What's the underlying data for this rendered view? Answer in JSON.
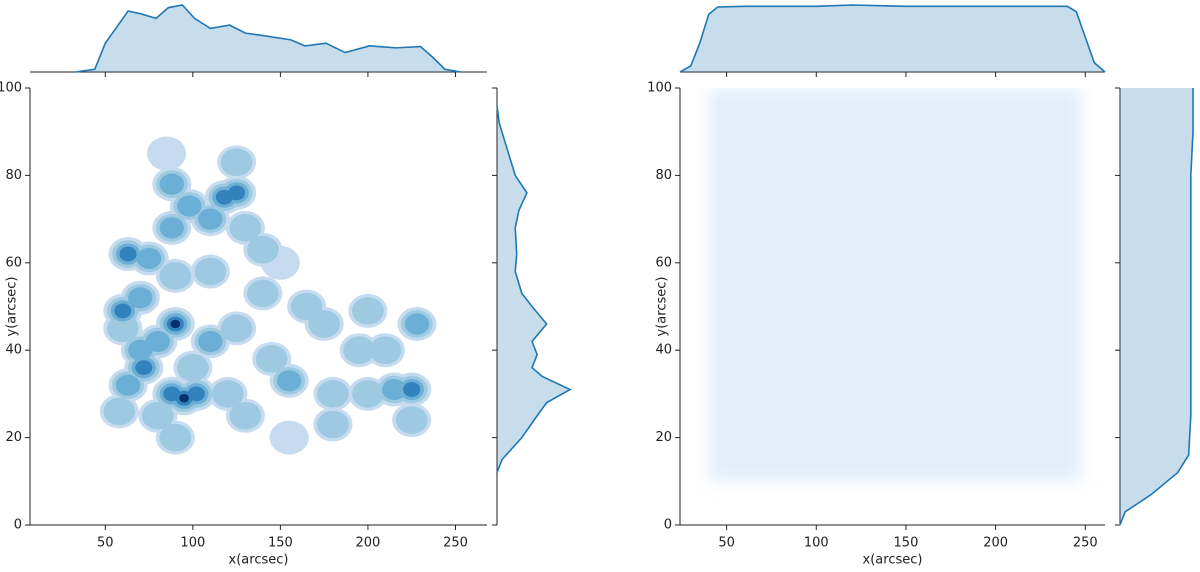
{
  "chart_data": [
    {
      "type": "kde",
      "xlabel": "x(arcsec)",
      "ylabel": "y(arcsec)",
      "xlim": [
        7,
        268
      ],
      "ylim": [
        0,
        100
      ],
      "xticks": [
        50,
        100,
        150,
        200,
        250
      ],
      "yticks": [
        0,
        20,
        40,
        60,
        80,
        100
      ],
      "color": "#1f77b4",
      "level_colors": [
        "#c6dbef",
        "#9ecae1",
        "#6baed6",
        "#3182bd",
        "#08306b"
      ],
      "points": {
        "x": [
          90,
          95,
          72,
          60,
          70,
          88,
          102,
          63,
          75,
          63,
          88,
          118,
          125,
          110,
          98,
          88,
          85,
          125,
          130,
          140,
          90,
          110,
          80,
          110,
          125,
          120,
          100,
          58,
          80,
          90,
          130,
          145,
          155,
          165,
          175,
          180,
          180,
          200,
          215,
          225,
          225,
          228,
          210,
          195,
          155,
          140,
          150,
          200,
          60,
          70
        ],
        "y": [
          46,
          29,
          36,
          49,
          52,
          30,
          30,
          32,
          61,
          62,
          78,
          75,
          76,
          70,
          73,
          68,
          85,
          83,
          68,
          63,
          57,
          58,
          42,
          42,
          45,
          30,
          36,
          26,
          25,
          20,
          25,
          38,
          33,
          50,
          46,
          30,
          23,
          30,
          31,
          31,
          24,
          46,
          40,
          40,
          20,
          53,
          60,
          49,
          45,
          40
        ],
        "level": [
          5,
          5,
          4,
          4,
          3,
          4,
          4,
          3,
          3,
          4,
          3,
          4,
          4,
          3,
          3,
          3,
          1,
          2,
          2,
          2,
          2,
          2,
          3,
          3,
          2,
          2,
          2,
          2,
          2,
          2,
          2,
          2,
          3,
          2,
          2,
          2,
          2,
          2,
          3,
          4,
          2,
          3,
          2,
          2,
          1,
          2,
          1,
          2,
          2,
          3
        ]
      },
      "x_density": {
        "x": [
          33,
          44,
          50,
          56,
          63,
          70,
          79,
          86,
          94,
          101,
          110,
          121,
          130,
          141,
          156,
          164,
          176,
          187,
          201,
          216,
          230,
          237,
          244,
          253
        ],
        "values": [
          0,
          0.04,
          0.43,
          0.65,
          0.91,
          0.87,
          0.8,
          0.96,
          1,
          0.8,
          0.65,
          0.7,
          0.58,
          0.54,
          0.48,
          0.39,
          0.43,
          0.29,
          0.39,
          0.36,
          0.38,
          0.22,
          0.04,
          0
        ]
      },
      "y_density": {
        "y": [
          12,
          15,
          20,
          25,
          28,
          31,
          34,
          36,
          39,
          42,
          46,
          50,
          53,
          58,
          62,
          68,
          72,
          76,
          80,
          86,
          92,
          96
        ],
        "values": [
          0,
          0.07,
          0.34,
          0.55,
          0.68,
          1,
          0.62,
          0.48,
          0.55,
          0.48,
          0.68,
          0.48,
          0.34,
          0.25,
          0.27,
          0.25,
          0.3,
          0.41,
          0.25,
          0.14,
          0.03,
          0
        ]
      }
    },
    {
      "type": "kde",
      "xlabel": "x(arcsec)",
      "ylabel": "y(arcsec)",
      "xlim": [
        24,
        261
      ],
      "ylim": [
        0,
        100
      ],
      "xticks": [
        50,
        100,
        150,
        200,
        250
      ],
      "yticks": [
        0,
        20,
        40,
        60,
        80,
        100
      ],
      "color": "#1f77b4",
      "region_color": "#e3eef9",
      "region": {
        "x": [
          40,
          248
        ],
        "y": [
          10,
          100
        ]
      },
      "x_density": {
        "x": [
          24,
          30,
          35,
          40,
          45,
          60,
          100,
          120,
          150,
          200,
          240,
          245,
          250,
          255,
          261
        ],
        "values": [
          0,
          0.09,
          0.43,
          0.86,
          0.97,
          0.98,
          0.98,
          1,
          0.98,
          0.98,
          0.98,
          0.9,
          0.52,
          0.14,
          0
        ]
      },
      "y_density": {
        "y": [
          0,
          3,
          7,
          12,
          16,
          25,
          50,
          80,
          90,
          100
        ],
        "values": [
          0,
          0.07,
          0.43,
          0.79,
          0.94,
          0.97,
          0.97,
          0.97,
          1,
          1
        ]
      }
    }
  ]
}
